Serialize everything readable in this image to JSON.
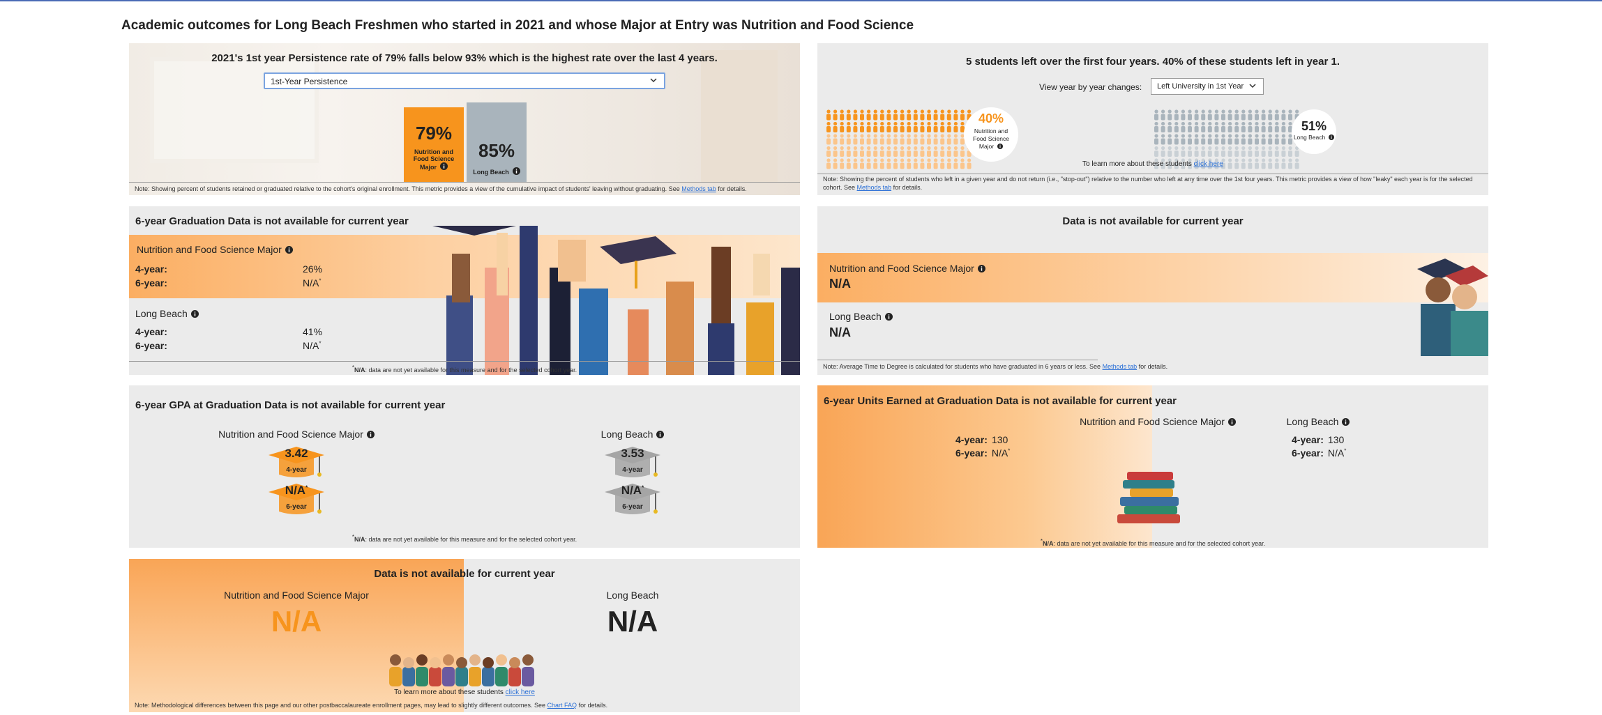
{
  "header": {
    "title": "Academic outcomes for Long Beach Freshmen who started in 2021 and whose Major at Entry was Nutrition and Food Science"
  },
  "persistence": {
    "heading": "2021's 1st year Persistence rate of 79% falls below 93% which is the highest rate over the last 4 years.",
    "dropdown": "1st-Year Persistence",
    "major": {
      "value": "79%",
      "label": "Nutrition and Food Science Major"
    },
    "campus": {
      "value": "85%",
      "label": "Long Beach"
    },
    "note": {
      "text": "Note: Showing percent of students retained or graduated relative to the cohort's original enrollment. This metric provides a view of the cumulative impact of students' leaving without graduating. See",
      "link": "Methods tab",
      "end": "for details."
    }
  },
  "stopout": {
    "heading": "5 students left over the first four years. 40% of these students left in year 1.",
    "view_label": "View year by year changes:",
    "dropdown": "Left University in 1st Year",
    "major": {
      "value": "40%",
      "label": "Nutrition and Food Science Major"
    },
    "campus": {
      "value": "51%",
      "label": "Long Beach"
    },
    "learn": {
      "text": "To learn more about these students",
      "link": "click here"
    },
    "note": {
      "text": "Note: Showing the percent of students who left in a given year and do not return (i.e., \"stop-out\") relative to the number who left at any time over the 1st four years. This metric provides a view of how \"leaky\" each year is for the selected cohort. See",
      "link": "Methods tab",
      "end": "for details."
    }
  },
  "graduation": {
    "heading": "6-year Graduation Data is not available for current year",
    "major": {
      "name": "Nutrition and Food Science Major",
      "rows": [
        {
          "label": "4-year:",
          "value": "26%"
        },
        {
          "label": "6-year:",
          "value": "N/A",
          "mark": "*"
        }
      ]
    },
    "campus": {
      "name": "Long Beach",
      "rows": [
        {
          "label": "4-year:",
          "value": "41%"
        },
        {
          "label": "6-year:",
          "value": "N/A",
          "mark": "*"
        }
      ]
    },
    "footnote": {
      "mark": "*",
      "term": "N/A",
      "text": ": data are not yet available for this measure and for the selected cohort year."
    }
  },
  "time_to_degree": {
    "heading": "Data is not available for current year",
    "major": {
      "name": "Nutrition and Food Science Major",
      "value": "N/A"
    },
    "campus": {
      "name": "Long Beach",
      "value": "N/A"
    },
    "note": {
      "text": "Note: Average Time to Degree is calculated for students who have graduated in 6 years or less. See",
      "link": "Methods tab",
      "end": "for details."
    }
  },
  "gpa": {
    "heading": "6-year GPA at Graduation Data is not available for current year",
    "major": {
      "name": "Nutrition and Food Science Major",
      "four": "3.42",
      "four_label": "4-year",
      "six": "N/A",
      "six_mark": "*",
      "six_label": "6-year"
    },
    "campus": {
      "name": "Long Beach",
      "four": "3.53",
      "four_label": "4-year",
      "six": "N/A",
      "six_mark": "*",
      "six_label": "6-year"
    },
    "footnote": {
      "mark": "*",
      "term": "N/A",
      "text": ": data are not yet available for this measure and for the selected cohort year."
    }
  },
  "units": {
    "heading": "6-year Units Earned at Graduation Data is not available for current year",
    "major": {
      "name": "Nutrition and Food Science Major",
      "rows": [
        {
          "label": "4-year:",
          "value": "130"
        },
        {
          "label": "6-year:",
          "value": "N/A",
          "mark": "*"
        }
      ]
    },
    "campus": {
      "name": "Long Beach",
      "rows": [
        {
          "label": "4-year:",
          "value": "130"
        },
        {
          "label": "6-year:",
          "value": "N/A",
          "mark": "*"
        }
      ]
    },
    "footnote": {
      "mark": "*",
      "term": "N/A",
      "text": ": data are not yet available for this measure and for the selected cohort year."
    }
  },
  "postbacc": {
    "heading": "Data is not available for current year",
    "major": {
      "name": "Nutrition and Food Science Major",
      "value": "N/A"
    },
    "campus": {
      "name": "Long Beach",
      "value": "N/A"
    },
    "learn": {
      "text": "To learn more about these students",
      "link": "click here"
    },
    "note": {
      "text": "Note: Methodological differences between this page and our other postbaccalaureate enrollment pages, may lead to slightly different outcomes. See",
      "link": "Chart FAQ",
      "end": "for details."
    }
  }
}
